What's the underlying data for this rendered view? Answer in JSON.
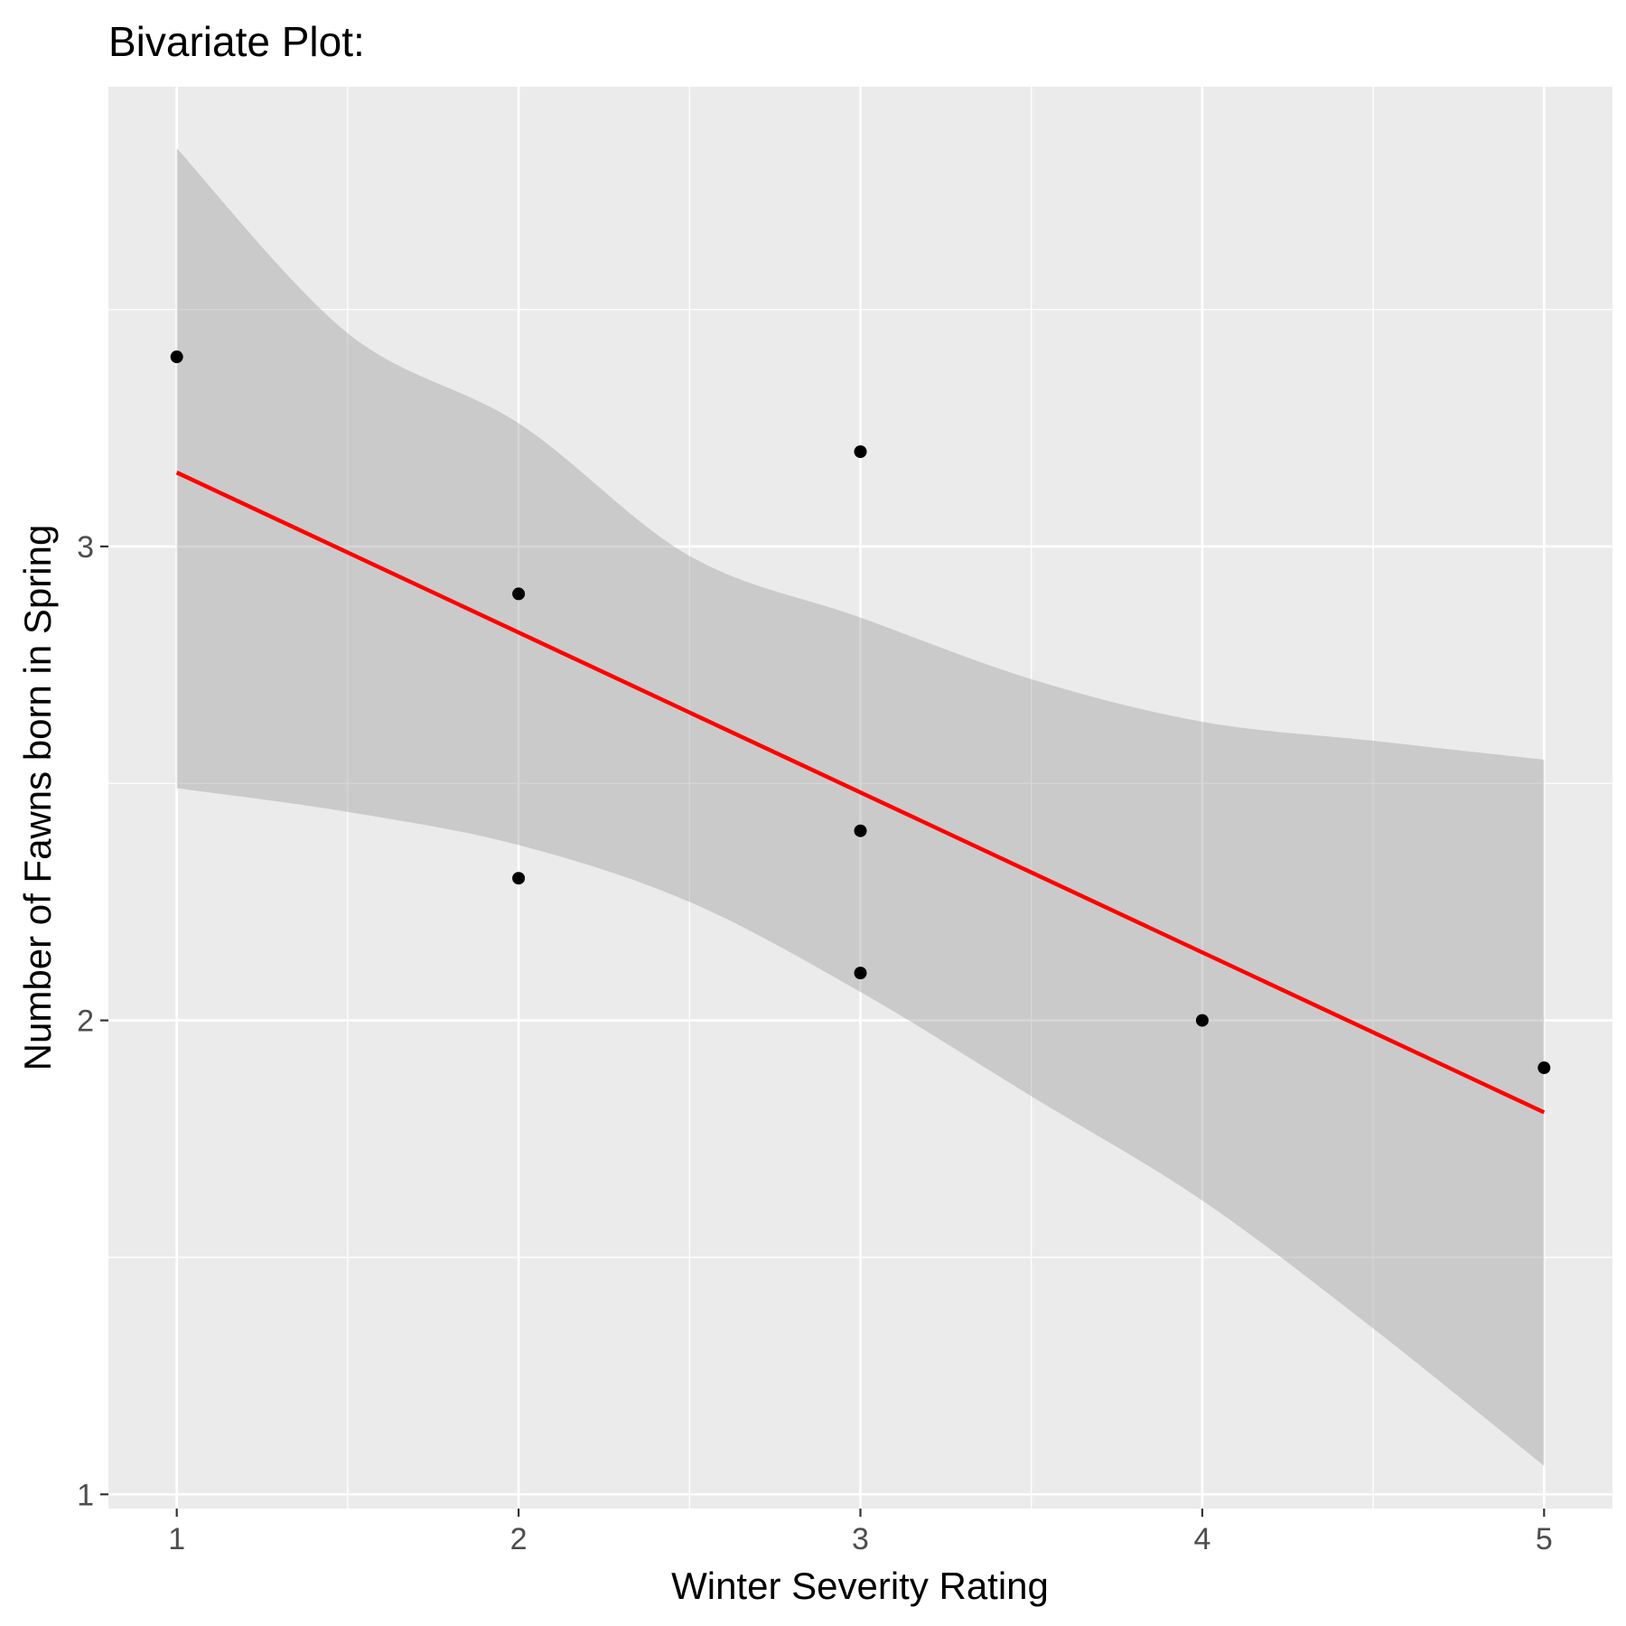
{
  "chart_data": {
    "type": "scatter",
    "title": "Bivariate Plot:",
    "xlabel": "Winter Severity Rating",
    "ylabel": "Number of Fawns born in Spring",
    "xlim": [
      0.8,
      5.2
    ],
    "ylim": [
      0.97,
      3.97
    ],
    "x_ticks": [
      1,
      2,
      3,
      4,
      5
    ],
    "y_ticks": [
      1,
      2,
      3
    ],
    "x_tick_labels": [
      "1",
      "2",
      "3",
      "4",
      "5"
    ],
    "y_tick_labels": [
      "1",
      "2",
      "3"
    ],
    "grid": true,
    "legend": "none",
    "points": [
      {
        "x": 1,
        "y": 3.4
      },
      {
        "x": 2,
        "y": 2.9
      },
      {
        "x": 2,
        "y": 2.3
      },
      {
        "x": 3,
        "y": 3.2
      },
      {
        "x": 3,
        "y": 2.4
      },
      {
        "x": 3,
        "y": 2.1
      },
      {
        "x": 4,
        "y": 2.0
      },
      {
        "x": 5,
        "y": 1.9
      }
    ],
    "fit_line": {
      "x": [
        1,
        5
      ],
      "y": [
        3.156,
        1.806
      ]
    },
    "confidence_band": {
      "x": [
        1.0,
        1.5,
        2.0,
        2.5,
        3.0,
        3.5,
        4.0,
        4.5,
        5.0
      ],
      "lower": [
        2.49,
        2.44,
        2.37,
        2.25,
        2.06,
        1.84,
        1.62,
        1.35,
        1.06
      ],
      "upper": [
        3.84,
        3.45,
        3.26,
        2.98,
        2.85,
        2.72,
        2.63,
        2.59,
        2.55
      ]
    },
    "colors": {
      "panel": "#ebebeb",
      "grid": "#ffffff",
      "points": "#000000",
      "fit_line": "#ff0000",
      "band": "#999999",
      "tick_mark": "#333333"
    }
  }
}
